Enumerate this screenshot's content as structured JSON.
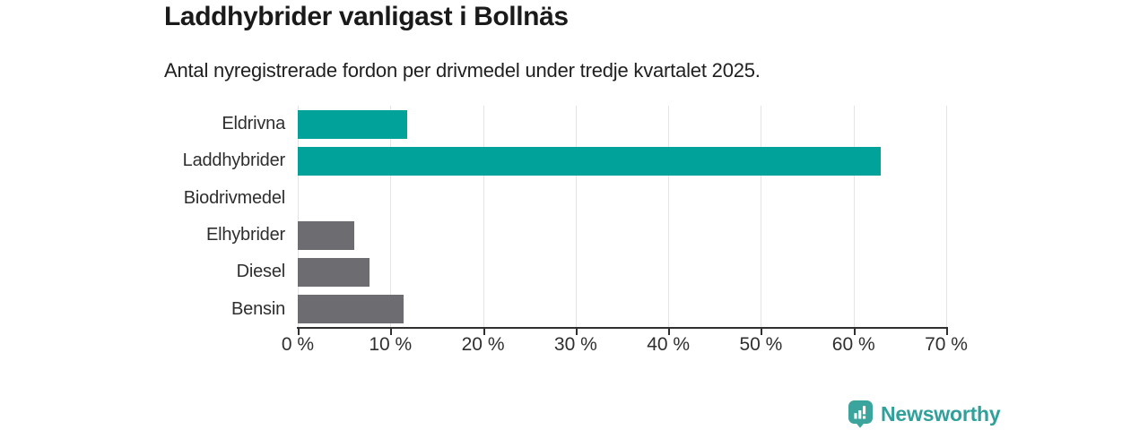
{
  "chart_data": {
    "type": "bar",
    "orientation": "horizontal",
    "title": "Laddhybrider vanligast i Bollnäs",
    "subtitle": "Antal nyregistrerade fordon per drivmedel under tredje kvartalet 2025.",
    "categories": [
      "Eldrivna",
      "Laddhybrider",
      "Biodrivmedel",
      "Elhybrider",
      "Diesel",
      "Bensin"
    ],
    "values": [
      11.8,
      62.9,
      0,
      6.1,
      7.7,
      11.4
    ],
    "unit": "%",
    "xlim": [
      0,
      70
    ],
    "x_ticks": [
      0,
      10,
      20,
      30,
      40,
      50,
      60,
      70
    ],
    "x_tick_labels": [
      "0 %",
      "10 %",
      "20 %",
      "30 %",
      "40 %",
      "50 %",
      "60 %",
      "70 %"
    ],
    "bar_colors": [
      "#00a29a",
      "#00a29a",
      "#6c6c71",
      "#6c6c71",
      "#6c6c71",
      "#6c6c71"
    ],
    "highlight_color": "#00a29a",
    "default_color": "#6c6c71",
    "grid": true,
    "legend": "none",
    "value_labels": false
  },
  "branding": {
    "logo_text": "Newsworthy",
    "logo_color": "#3ba49c",
    "logo_icon": "speech-bubble-bar-chart-icon"
  }
}
